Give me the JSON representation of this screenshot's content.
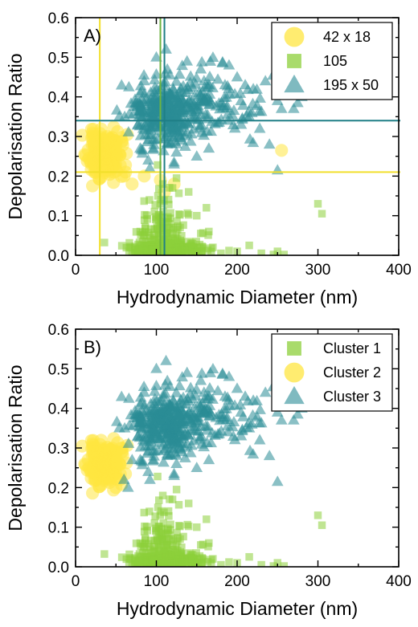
{
  "colors": {
    "yellow": "#ffe640",
    "green": "#8ccf3a",
    "teal": "#2a8c96",
    "yellow_line": "#f2df2b",
    "green_line": "#6db33f",
    "teal_line": "#1f7f86"
  },
  "chart_data": [
    {
      "type": "scatter",
      "panel_label": "A)",
      "xlabel": "Hydrodynamic Diameter (nm)",
      "ylabel": "Depolarisation Ratio",
      "xlim": [
        0,
        400
      ],
      "ylim": [
        0,
        0.6
      ],
      "x_ticks": [
        0,
        100,
        200,
        300,
        400
      ],
      "x_tick_labels": [
        "0",
        "100",
        "200",
        "300",
        "400"
      ],
      "y_ticks": [
        0,
        0.1,
        0.2,
        0.3,
        0.4,
        0.5,
        0.6
      ],
      "y_tick_labels": [
        "0.0",
        "0.1",
        "0.2",
        "0.3",
        "0.4",
        "0.5",
        "0.6"
      ],
      "legend_position": "top-right",
      "series": [
        {
          "name": "42 x 18",
          "marker": "circle",
          "color": "#ffe640",
          "clusters": [
            {
              "cx": 35,
              "cy": 0.255,
              "sx": 10,
              "sy": 0.028,
              "n": 180
            }
          ],
          "extra_points": [
            [
              62,
              0.21
            ],
            [
              70,
              0.18
            ],
            [
              48,
              0.21
            ],
            [
              60,
              0.2
            ],
            [
              255,
              0.265
            ],
            [
              110,
              0.16
            ],
            [
              122,
              0.18
            ],
            [
              105,
              0.19
            ],
            [
              85,
              0.2
            ]
          ]
        },
        {
          "name": "105",
          "marker": "square",
          "color": "#8ccf3a",
          "clusters": [
            {
              "cx": 112,
              "cy": 0.015,
              "sx": 22,
              "sy": 0.012,
              "n": 260
            },
            {
              "cx": 108,
              "cy": 0.07,
              "sx": 16,
              "sy": 0.05,
              "n": 120
            }
          ],
          "extra_points": [
            [
              120,
              0.17
            ],
            [
              108,
              0.18
            ],
            [
              125,
              0.195
            ],
            [
              102,
              0.15
            ],
            [
              165,
              0.06
            ],
            [
              155,
              0.055
            ],
            [
              170,
              0.02
            ],
            [
              180,
              0.005
            ],
            [
              190,
              0.012
            ],
            [
              200,
              0.01
            ],
            [
              215,
              0.025
            ],
            [
              230,
              0.005
            ],
            [
              245,
              0.002
            ],
            [
              250,
              0.01
            ],
            [
              258,
              0.002
            ],
            [
              300,
              0.13
            ],
            [
              305,
              0.105
            ],
            [
              140,
              0.16
            ],
            [
              150,
              0.1
            ],
            [
              162,
              0.12
            ],
            [
              80,
              0.06
            ],
            [
              73,
              0.015
            ],
            [
              70,
              0.003
            ]
          ]
        },
        {
          "name": "195 x 50",
          "marker": "triangle",
          "color": "#2a8c96",
          "clusters": [
            {
              "cx": 110,
              "cy": 0.36,
              "sx": 22,
              "sy": 0.04,
              "n": 300
            },
            {
              "cx": 160,
              "cy": 0.39,
              "sx": 35,
              "sy": 0.045,
              "n": 120
            }
          ],
          "extra_points": [
            [
              200,
              0.45
            ],
            [
              210,
              0.43
            ],
            [
              220,
              0.42
            ],
            [
              235,
              0.44
            ],
            [
              250,
              0.39
            ],
            [
              255,
              0.37
            ],
            [
              270,
              0.37
            ],
            [
              275,
              0.385
            ],
            [
              280,
              0.4
            ],
            [
              228,
              0.32
            ],
            [
              250,
              0.215
            ],
            [
              240,
              0.28
            ],
            [
              190,
              0.48
            ],
            [
              185,
              0.43
            ],
            [
              205,
              0.33
            ],
            [
              215,
              0.35
            ],
            [
              138,
              0.49
            ],
            [
              155,
              0.47
            ],
            [
              100,
              0.5
            ],
            [
              112,
              0.52
            ],
            [
              85,
              0.44
            ],
            [
              80,
              0.41
            ],
            [
              80,
              0.27
            ],
            [
              90,
              0.24
            ],
            [
              92,
              0.22
            ],
            [
              125,
              0.26
            ],
            [
              122,
              0.23
            ],
            [
              150,
              0.25
            ],
            [
              165,
              0.27
            ]
          ]
        }
      ],
      "reference_lines": [
        {
          "orientation": "vertical",
          "value": 30,
          "color": "#f2df2b"
        },
        {
          "orientation": "horizontal",
          "value": 0.21,
          "color": "#f2df2b"
        },
        {
          "orientation": "vertical",
          "value": 105,
          "color": "#6db33f"
        },
        {
          "orientation": "vertical",
          "value": 110,
          "color": "#1f7f86"
        },
        {
          "orientation": "horizontal",
          "value": 0.34,
          "color": "#1f7f86"
        }
      ]
    },
    {
      "type": "scatter",
      "panel_label": "B)",
      "xlabel": "Hydrodynamic Diameter (nm)",
      "ylabel": "Depolarisation Ratio",
      "xlim": [
        0,
        400
      ],
      "ylim": [
        0,
        0.6
      ],
      "x_ticks": [
        0,
        100,
        200,
        300,
        400
      ],
      "x_tick_labels": [
        "0",
        "100",
        "200",
        "300",
        "400"
      ],
      "y_ticks": [
        0,
        0.1,
        0.2,
        0.3,
        0.4,
        0.5,
        0.6
      ],
      "y_tick_labels": [
        "0.0",
        "0.1",
        "0.2",
        "0.3",
        "0.4",
        "0.5",
        "0.6"
      ],
      "legend_position": "top-right",
      "series": [
        {
          "name": "Cluster 1",
          "marker": "square",
          "color": "#8ccf3a",
          "clusters": [
            {
              "cx": 112,
              "cy": 0.015,
              "sx": 22,
              "sy": 0.012,
              "n": 260
            },
            {
              "cx": 108,
              "cy": 0.07,
              "sx": 16,
              "sy": 0.05,
              "n": 120
            }
          ],
          "extra_points": [
            [
              120,
              0.17
            ],
            [
              108,
              0.18
            ],
            [
              125,
              0.195
            ],
            [
              102,
              0.15
            ],
            [
              165,
              0.06
            ],
            [
              155,
              0.055
            ],
            [
              170,
              0.02
            ],
            [
              180,
              0.005
            ],
            [
              190,
              0.012
            ],
            [
              200,
              0.01
            ],
            [
              215,
              0.025
            ],
            [
              230,
              0.005
            ],
            [
              245,
              0.002
            ],
            [
              250,
              0.01
            ],
            [
              258,
              0.002
            ],
            [
              300,
              0.13
            ],
            [
              305,
              0.105
            ],
            [
              140,
              0.16
            ],
            [
              150,
              0.1
            ],
            [
              162,
              0.12
            ],
            [
              80,
              0.06
            ],
            [
              73,
              0.015
            ],
            [
              70,
              0.003
            ]
          ]
        },
        {
          "name": "Cluster 2",
          "marker": "circle",
          "color": "#ffe640",
          "clusters": [
            {
              "cx": 35,
              "cy": 0.26,
              "sx": 10,
              "sy": 0.026,
              "n": 180
            }
          ],
          "extra_points": [
            [
              58,
              0.3
            ],
            [
              55,
              0.22
            ],
            [
              50,
              0.2
            ]
          ]
        },
        {
          "name": "Cluster 3",
          "marker": "triangle",
          "color": "#2a8c96",
          "clusters": [
            {
              "cx": 110,
              "cy": 0.36,
              "sx": 22,
              "sy": 0.04,
              "n": 300
            },
            {
              "cx": 160,
              "cy": 0.39,
              "sx": 35,
              "sy": 0.045,
              "n": 120
            }
          ],
          "extra_points": [
            [
              200,
              0.45
            ],
            [
              210,
              0.43
            ],
            [
              220,
              0.42
            ],
            [
              235,
              0.44
            ],
            [
              250,
              0.39
            ],
            [
              255,
              0.37
            ],
            [
              270,
              0.37
            ],
            [
              275,
              0.385
            ],
            [
              280,
              0.4
            ],
            [
              228,
              0.32
            ],
            [
              250,
              0.215
            ],
            [
              240,
              0.28
            ],
            [
              190,
              0.48
            ],
            [
              185,
              0.43
            ],
            [
              205,
              0.33
            ],
            [
              215,
              0.35
            ],
            [
              138,
              0.49
            ],
            [
              155,
              0.47
            ],
            [
              100,
              0.5
            ],
            [
              112,
              0.52
            ],
            [
              85,
              0.44
            ],
            [
              80,
              0.41
            ],
            [
              80,
              0.27
            ],
            [
              90,
              0.24
            ],
            [
              92,
              0.22
            ],
            [
              125,
              0.26
            ],
            [
              122,
              0.23
            ],
            [
              150,
              0.25
            ],
            [
              165,
              0.27
            ],
            [
              65,
              0.2
            ],
            [
              70,
              0.27
            ],
            [
              60,
              0.22
            ]
          ]
        }
      ],
      "reference_lines": []
    }
  ]
}
